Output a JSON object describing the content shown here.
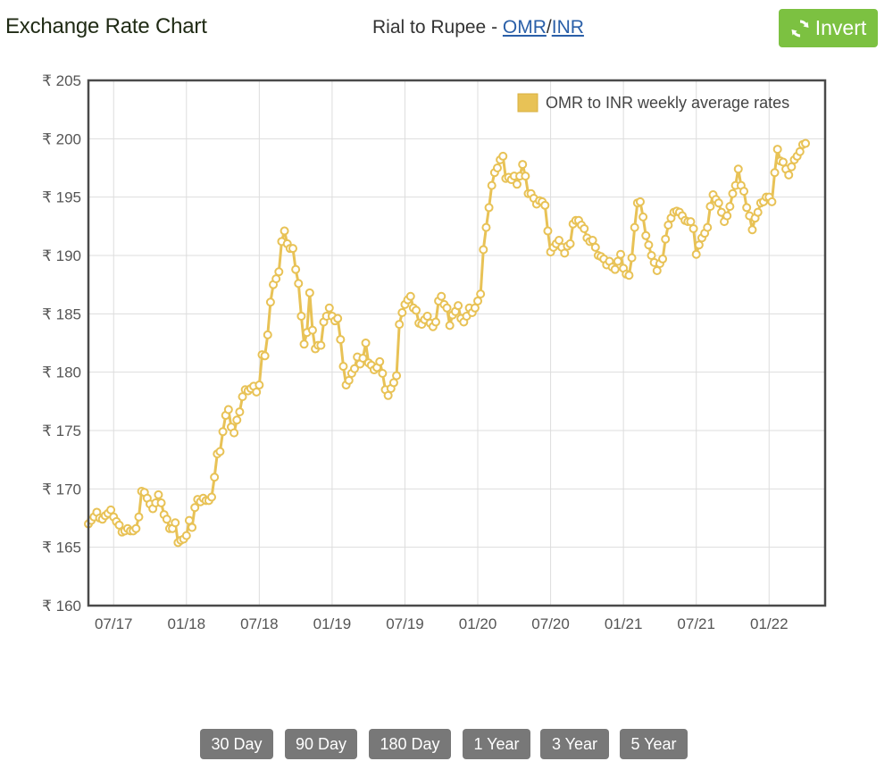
{
  "header": {
    "title": "Exchange Rate Chart",
    "pair_prefix": "Rial to Rupee - ",
    "base_code": "OMR",
    "separator": "/",
    "quote_code": "INR",
    "invert_label": "Invert",
    "invert_icon": "refresh-icon",
    "accent_color": "#7cc141",
    "link_color": "#2a5fa8"
  },
  "range_buttons": [
    "30 Day",
    "90 Day",
    "180 Day",
    "1 Year",
    "3 Year",
    "5 Year"
  ],
  "chart_data": {
    "type": "line",
    "title": "",
    "xlabel": "",
    "ylabel": "",
    "currency_symbol": "₹",
    "ylim": [
      160,
      205
    ],
    "y_ticks": [
      160,
      165,
      170,
      175,
      180,
      185,
      190,
      195,
      200,
      205
    ],
    "x_tick_labels": [
      "07/17",
      "01/18",
      "07/18",
      "01/19",
      "07/19",
      "01/20",
      "07/20",
      "01/21",
      "07/21",
      "01/22"
    ],
    "x_range_weeks": [
      0,
      263
    ],
    "x_tick_weeks": [
      9,
      35,
      61,
      87,
      113,
      139,
      165,
      191,
      217,
      243
    ],
    "grid": true,
    "legend_position": "top-right",
    "series": [
      {
        "name": "OMR to INR weekly average rates",
        "color": "#e8c256",
        "values": [
          167.0,
          167.3,
          167.6,
          168.0,
          167.5,
          167.4,
          167.7,
          167.9,
          168.2,
          167.6,
          167.2,
          166.9,
          166.3,
          166.4,
          166.6,
          166.4,
          166.4,
          166.6,
          167.6,
          169.8,
          169.7,
          169.2,
          168.7,
          168.3,
          168.8,
          169.5,
          168.8,
          167.8,
          167.4,
          166.6,
          166.6,
          167.1,
          165.4,
          165.6,
          165.7,
          166.0,
          167.3,
          166.7,
          168.4,
          169.1,
          168.9,
          169.2,
          169.0,
          169.0,
          169.3,
          171.0,
          173.0,
          173.2,
          174.9,
          176.3,
          176.8,
          175.3,
          174.8,
          175.9,
          176.6,
          177.9,
          178.5,
          178.4,
          178.6,
          178.8,
          178.3,
          178.9,
          181.5,
          181.4,
          183.2,
          186.0,
          187.5,
          188.0,
          188.6,
          191.2,
          192.1,
          191.0,
          190.6,
          190.6,
          188.8,
          187.6,
          184.8,
          182.4,
          183.4,
          186.8,
          183.6,
          182.0,
          182.3,
          182.3,
          184.3,
          184.8,
          185.5,
          184.8,
          184.4,
          184.6,
          182.8,
          180.5,
          178.9,
          179.3,
          179.9,
          180.3,
          181.3,
          180.7,
          181.2,
          182.5,
          180.8,
          180.6,
          180.2,
          180.4,
          180.9,
          179.9,
          178.5,
          178.0,
          178.6,
          179.1,
          179.7,
          184.1,
          185.1,
          185.8,
          186.2,
          186.5,
          185.5,
          185.3,
          184.2,
          184.1,
          184.5,
          184.8,
          184.2,
          183.9,
          184.3,
          186.1,
          186.5,
          185.8,
          185.5,
          184.0,
          184.9,
          185.2,
          185.7,
          184.6,
          184.3,
          184.8,
          185.5,
          185.1,
          185.5,
          186.1,
          186.7,
          190.5,
          192.4,
          194.1,
          196.0,
          197.1,
          197.5,
          198.2,
          198.5,
          196.6,
          196.7,
          196.5,
          196.8,
          196.1,
          196.8,
          197.8,
          196.8,
          195.3,
          195.3,
          194.9,
          194.4,
          194.7,
          194.6,
          194.3,
          192.1,
          190.3,
          190.7,
          191.0,
          191.3,
          190.7,
          190.2,
          190.8,
          191.0,
          192.7,
          193.0,
          193.0,
          192.6,
          192.3,
          191.5,
          191.2,
          191.3,
          190.7,
          190.0,
          189.9,
          189.7,
          189.2,
          189.5,
          189.0,
          188.8,
          189.5,
          190.1,
          188.9,
          188.4,
          188.3,
          189.8,
          192.4,
          194.5,
          194.6,
          193.3,
          191.7,
          190.9,
          190.0,
          189.4,
          188.7,
          189.3,
          189.7,
          191.4,
          192.6,
          193.2,
          193.7,
          193.8,
          193.7,
          193.4,
          193.0,
          192.9,
          192.9,
          192.3,
          190.1,
          190.9,
          191.5,
          191.9,
          192.4,
          194.2,
          195.2,
          194.8,
          194.5,
          193.7,
          192.9,
          193.4,
          194.2,
          195.3,
          196.0,
          197.4,
          196.0,
          195.5,
          194.1,
          193.4,
          192.2,
          193.2,
          193.7,
          194.5,
          194.6,
          195.0,
          195.0,
          194.6,
          197.1,
          199.1,
          198.1,
          198.0,
          197.4,
          196.9,
          197.6,
          198.2,
          198.5,
          198.9,
          199.5,
          199.6
        ]
      }
    ]
  }
}
